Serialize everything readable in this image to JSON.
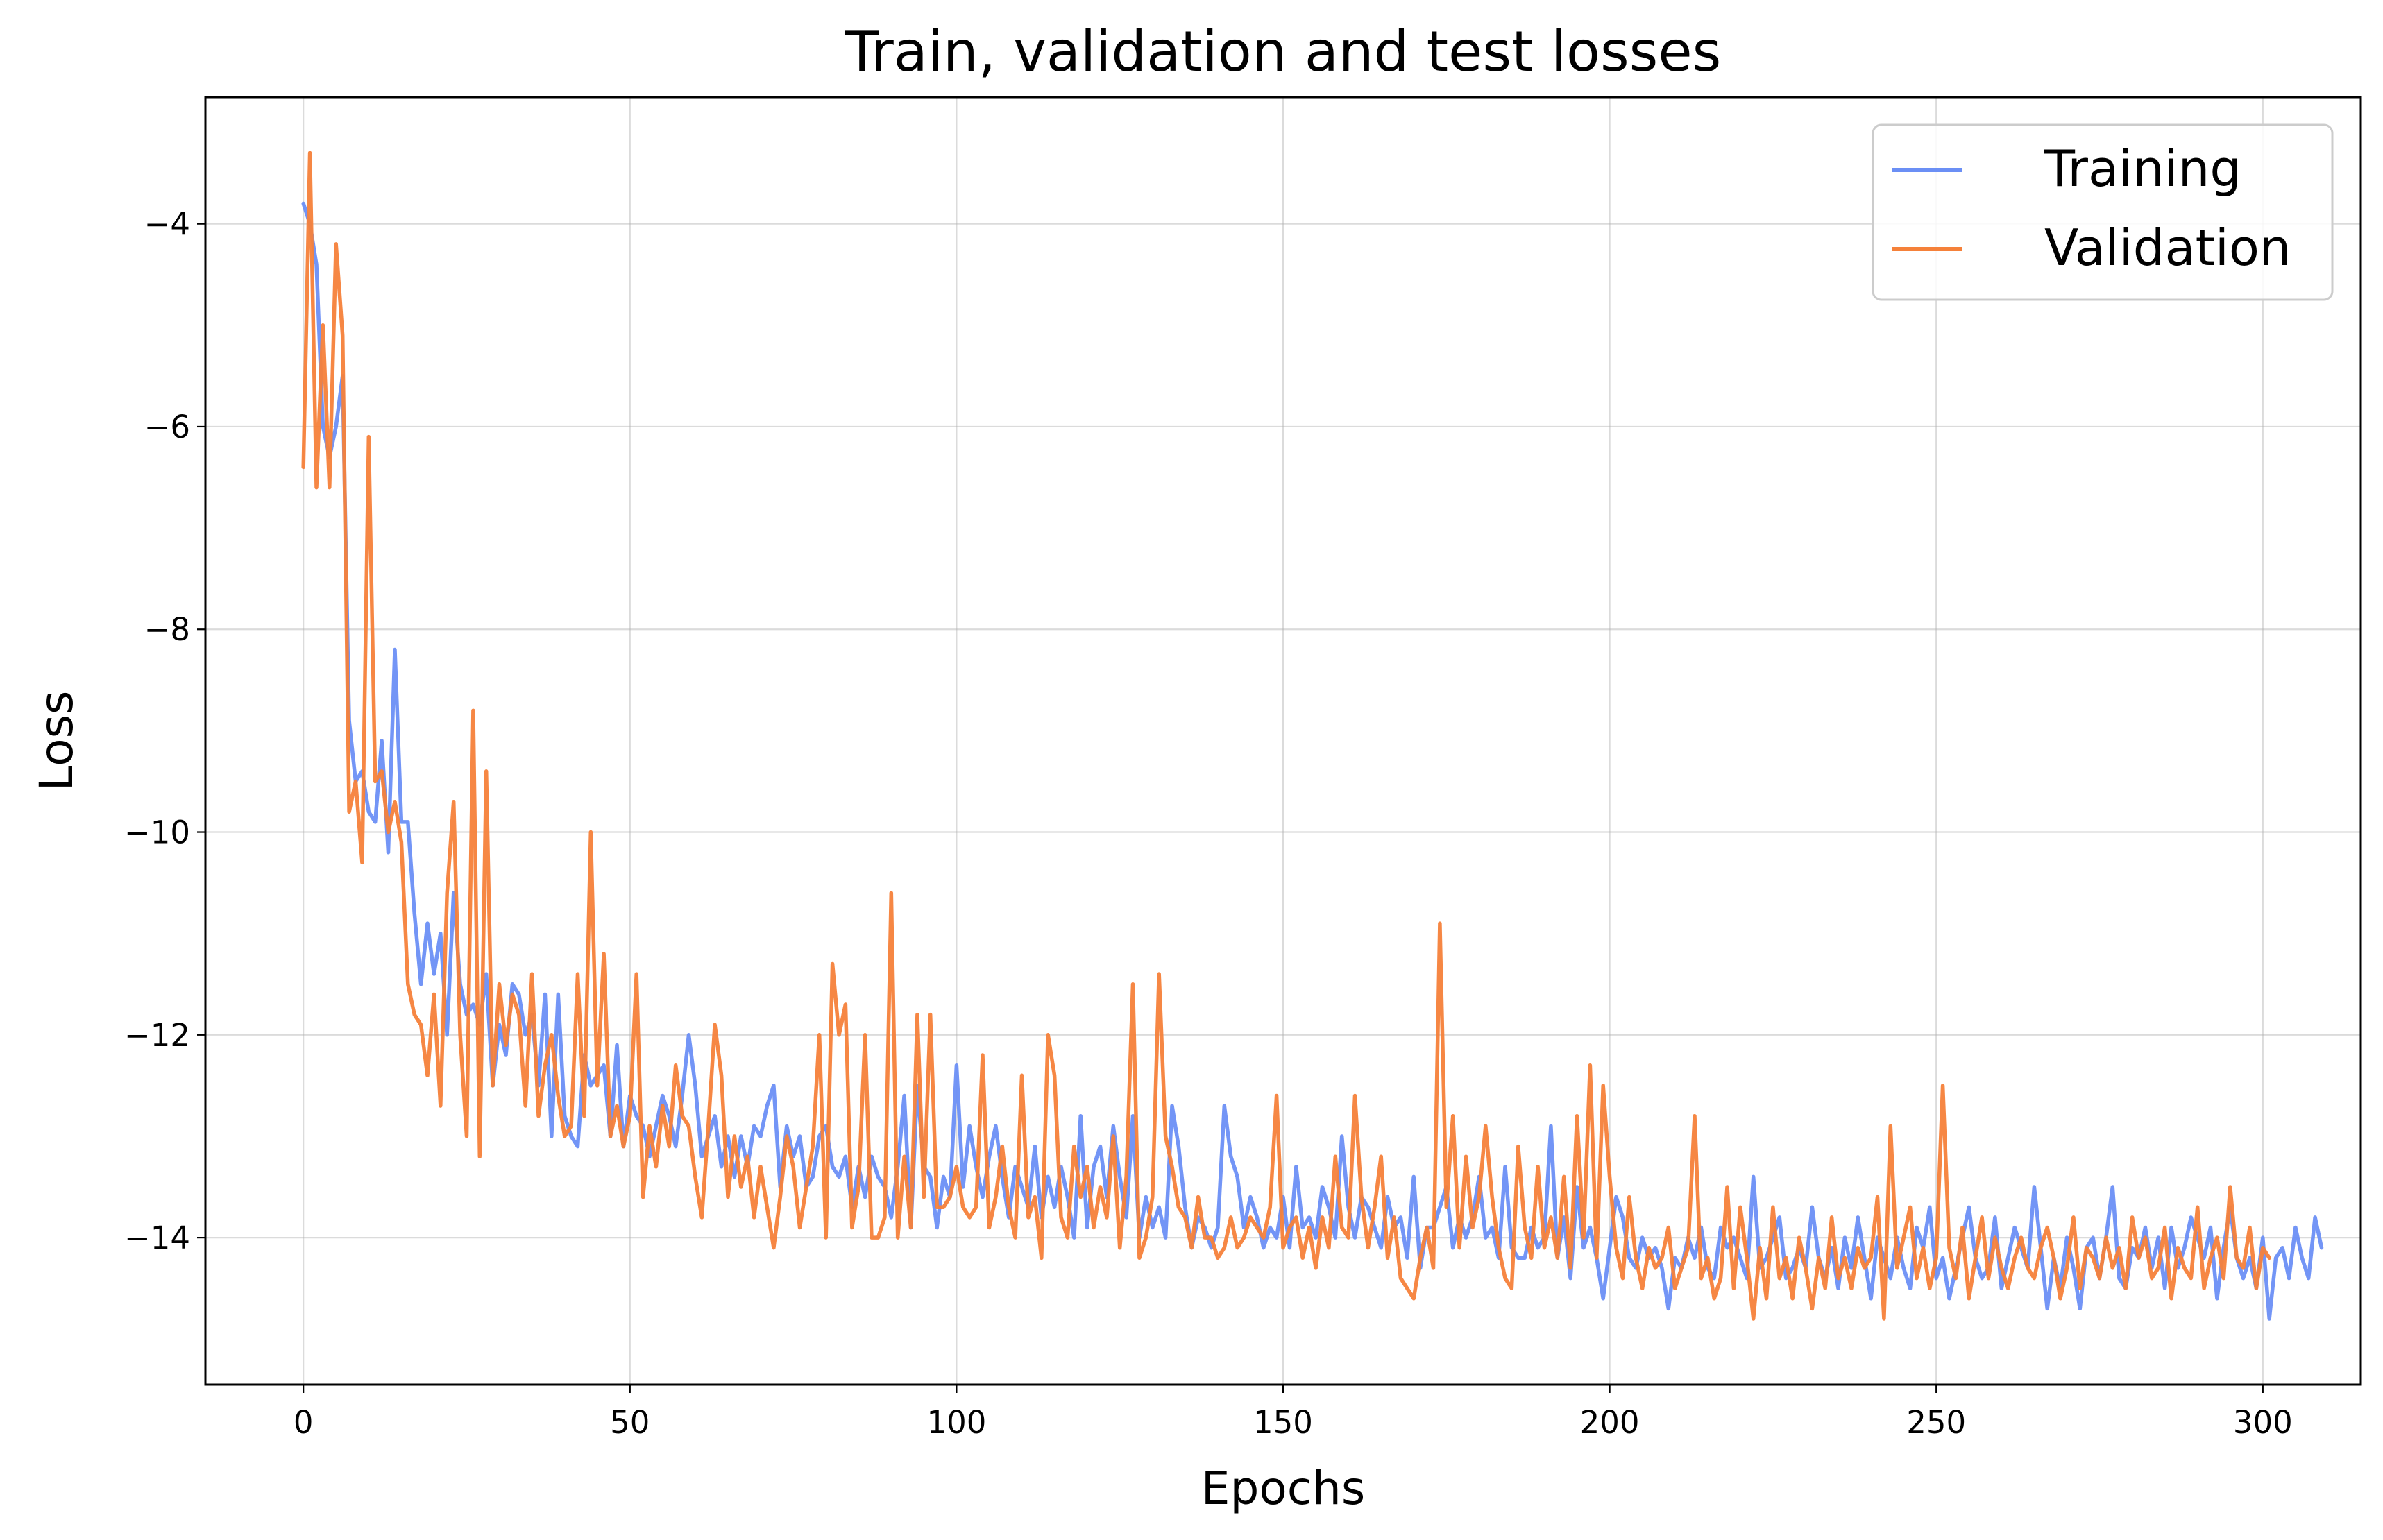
{
  "chart_data": {
    "type": "line",
    "title": "Train, validation and test losses",
    "xlabel": "Epochs",
    "ylabel": "Loss",
    "xlim": [
      -15,
      315
    ],
    "ylim": [
      -15.45,
      -2.75
    ],
    "xticks": [
      0,
      50,
      100,
      150,
      200,
      250,
      300
    ],
    "yticks": [
      -14,
      -12,
      -10,
      -8,
      -6,
      -4
    ],
    "grid": true,
    "legend_position": "top-right",
    "x": "epochs 0-299, one point per epoch",
    "series": [
      {
        "name": "Training",
        "color": "#6b8ff5",
        "values": [
          -3.8,
          -4.0,
          -4.4,
          -6.0,
          -6.3,
          -6.0,
          -5.5,
          -8.9,
          -9.5,
          -9.4,
          -9.8,
          -9.9,
          -9.1,
          -10.2,
          -8.2,
          -9.9,
          -9.9,
          -10.8,
          -11.5,
          -10.9,
          -11.4,
          -11.0,
          -12.0,
          -10.6,
          -11.5,
          -11.8,
          -11.7,
          -11.9,
          -11.4,
          -12.5,
          -11.9,
          -12.2,
          -11.5,
          -11.6,
          -12.0,
          -11.8,
          -12.5,
          -11.6,
          -13.0,
          -11.6,
          -12.8,
          -13.0,
          -13.1,
          -12.2,
          -12.5,
          -12.4,
          -12.3,
          -13.0,
          -12.1,
          -13.1,
          -12.6,
          -12.8,
          -12.9,
          -13.2,
          -12.9,
          -12.6,
          -12.8,
          -13.1,
          -12.6,
          -12.0,
          -12.5,
          -13.2,
          -13.0,
          -12.8,
          -13.3,
          -13.0,
          -13.4,
          -13.0,
          -13.3,
          -12.9,
          -13.0,
          -12.7,
          -12.5,
          -13.5,
          -12.9,
          -13.2,
          -13.0,
          -13.5,
          -13.4,
          -13.0,
          -12.9,
          -13.3,
          -13.4,
          -13.2,
          -13.7,
          -13.3,
          -13.6,
          -13.2,
          -13.4,
          -13.5,
          -13.8,
          -13.3,
          -12.6,
          -13.9,
          -12.5,
          -13.3,
          -13.4,
          -13.9,
          -13.4,
          -13.6,
          -12.3,
          -13.5,
          -12.9,
          -13.3,
          -13.6,
          -13.2,
          -12.9,
          -13.4,
          -13.8,
          -13.3,
          -13.5,
          -13.7,
          -13.1,
          -13.8,
          -13.4,
          -13.7,
          -13.3,
          -13.6,
          -14.0,
          -12.8,
          -13.9,
          -13.3,
          -13.1,
          -13.6,
          -12.9,
          -13.4,
          -13.8,
          -12.8,
          -14.0,
          -13.6,
          -13.9,
          -13.7,
          -14.0,
          -12.7,
          -13.1,
          -13.7,
          -14.1,
          -13.8,
          -13.9,
          -14.1,
          -13.9,
          -12.7,
          -13.2,
          -13.4,
          -13.9,
          -13.6,
          -13.8,
          -14.1,
          -13.9,
          -14.0,
          -13.6,
          -14.1,
          -13.3,
          -13.9,
          -13.8,
          -14.0,
          -13.5,
          -13.7,
          -14.0,
          -13.0,
          -13.7,
          -14.0,
          -13.6,
          -13.7,
          -13.9,
          -14.1,
          -13.6,
          -13.9,
          -13.8,
          -14.2,
          -13.4,
          -14.3,
          -13.9,
          -13.9,
          -13.7,
          -13.5,
          -14.1,
          -13.8,
          -14.0,
          -13.8,
          -13.4,
          -14.0,
          -13.9,
          -14.2,
          -13.3,
          -14.1,
          -14.2,
          -14.2,
          -13.9,
          -14.1,
          -14.0,
          -12.9,
          -14.2,
          -13.8,
          -14.4,
          -13.5,
          -14.1,
          -13.9,
          -14.2,
          -14.6,
          -14.1,
          -13.6,
          -13.8,
          -14.2,
          -14.3,
          -14.0,
          -14.2,
          -14.1,
          -14.3,
          -14.7,
          -14.2,
          -14.3,
          -14.0,
          -14.2,
          -13.9,
          -14.3,
          -14.4,
          -13.9,
          -14.1,
          -14.0,
          -14.2,
          -14.4,
          -13.4,
          -14.3,
          -14.2,
          -14.0,
          -13.8,
          -14.4,
          -14.3,
          -14.1,
          -14.3,
          -13.7,
          -14.2,
          -14.4,
          -14.1,
          -14.5,
          -14.0,
          -14.3,
          -13.8,
          -14.2,
          -14.6,
          -14.0,
          -14.2,
          -14.4,
          -14.0,
          -14.3,
          -14.5,
          -13.9,
          -14.1,
          -13.7,
          -14.4,
          -14.2,
          -14.6,
          -14.3,
          -14.0,
          -13.7,
          -14.2,
          -14.4,
          -14.3,
          -13.8,
          -14.5,
          -14.2,
          -13.9,
          -14.1,
          -14.3,
          -13.5,
          -14.1,
          -14.7,
          -14.2,
          -14.5,
          -14.0,
          -14.3,
          -14.7,
          -14.1,
          -14.0,
          -14.4,
          -14.0,
          -13.5,
          -14.4,
          -14.5,
          -14.1,
          -14.2,
          -13.9,
          -14.3,
          -14.0,
          -14.5,
          -13.9,
          -14.3,
          -14.1,
          -13.8,
          -14.0,
          -14.2,
          -13.9,
          -14.6,
          -14.1,
          -13.7,
          -14.2,
          -14.4,
          -14.2,
          -14.5,
          -14.0,
          -14.8,
          -14.2,
          -14.1,
          -14.4,
          -13.9,
          -14.2,
          -14.4,
          -13.8,
          -14.1
        ]
      },
      {
        "name": "Validation",
        "color": "#f5813a",
        "values": [
          -6.4,
          -3.3,
          -6.6,
          -5.0,
          -6.6,
          -4.2,
          -5.1,
          -9.8,
          -9.5,
          -10.3,
          -6.1,
          -9.5,
          -9.4,
          -10.0,
          -9.7,
          -10.1,
          -11.5,
          -11.8,
          -11.9,
          -12.4,
          -11.6,
          -12.7,
          -10.6,
          -9.7,
          -12.0,
          -13.0,
          -8.8,
          -13.2,
          -9.4,
          -12.5,
          -11.5,
          -12.1,
          -11.6,
          -11.8,
          -12.7,
          -11.4,
          -12.8,
          -12.3,
          -12.0,
          -12.6,
          -13.0,
          -12.9,
          -11.4,
          -12.8,
          -10.0,
          -12.5,
          -11.2,
          -13.0,
          -12.7,
          -13.1,
          -12.8,
          -11.4,
          -13.6,
          -12.9,
          -13.3,
          -12.7,
          -13.1,
          -12.3,
          -12.8,
          -12.9,
          -13.4,
          -13.8,
          -12.9,
          -11.9,
          -12.4,
          -13.6,
          -13.0,
          -13.5,
          -13.2,
          -13.8,
          -13.3,
          -13.7,
          -14.1,
          -13.6,
          -13.0,
          -13.3,
          -13.9,
          -13.5,
          -13.1,
          -12.0,
          -14.0,
          -11.3,
          -12.0,
          -11.7,
          -13.9,
          -13.5,
          -12.0,
          -14.0,
          -14.0,
          -13.8,
          -10.6,
          -14.0,
          -13.2,
          -13.9,
          -11.8,
          -13.6,
          -11.8,
          -13.7,
          -13.7,
          -13.6,
          -13.3,
          -13.7,
          -13.8,
          -13.7,
          -12.2,
          -13.9,
          -13.6,
          -13.1,
          -13.7,
          -14.0,
          -12.4,
          -13.8,
          -13.6,
          -14.2,
          -12.0,
          -12.4,
          -13.8,
          -14.0,
          -13.1,
          -13.6,
          -13.3,
          -13.9,
          -13.5,
          -13.8,
          -13.0,
          -14.1,
          -13.4,
          -11.5,
          -14.2,
          -14.0,
          -13.6,
          -11.4,
          -13.0,
          -13.3,
          -13.7,
          -13.8,
          -14.1,
          -13.6,
          -14.0,
          -14.0,
          -14.2,
          -14.1,
          -13.8,
          -14.1,
          -14.0,
          -13.8,
          -13.9,
          -14.0,
          -13.7,
          -12.6,
          -14.1,
          -13.9,
          -13.8,
          -14.2,
          -13.9,
          -14.3,
          -13.8,
          -14.1,
          -13.2,
          -13.9,
          -14.0,
          -12.6,
          -13.6,
          -14.1,
          -13.7,
          -13.2,
          -14.2,
          -13.8,
          -14.4,
          -14.5,
          -14.6,
          -14.2,
          -13.9,
          -14.3,
          -10.9,
          -13.7,
          -12.8,
          -14.1,
          -13.2,
          -13.9,
          -13.6,
          -12.9,
          -13.6,
          -14.1,
          -14.4,
          -14.5,
          -13.1,
          -13.9,
          -14.2,
          -13.3,
          -14.1,
          -13.8,
          -14.2,
          -13.4,
          -14.3,
          -12.8,
          -14.0,
          -12.3,
          -14.2,
          -12.5,
          -13.4,
          -14.1,
          -14.4,
          -13.6,
          -14.2,
          -14.5,
          -14.1,
          -14.3,
          -14.2,
          -13.9,
          -14.5,
          -14.3,
          -14.1,
          -12.8,
          -14.4,
          -14.2,
          -14.6,
          -14.4,
          -13.5,
          -14.5,
          -13.7,
          -14.2,
          -14.8,
          -14.1,
          -14.6,
          -13.7,
          -14.4,
          -14.2,
          -14.6,
          -14.0,
          -14.3,
          -14.7,
          -14.2,
          -14.5,
          -13.8,
          -14.4,
          -14.2,
          -14.5,
          -14.1,
          -14.3,
          -14.2,
          -13.6,
          -14.8,
          -12.9,
          -14.3,
          -14.0,
          -13.7,
          -14.4,
          -14.1,
          -14.5,
          -14.2,
          -12.5,
          -14.1,
          -14.4,
          -13.9,
          -14.6,
          -14.2,
          -13.8,
          -14.4,
          -14.0,
          -14.3,
          -14.5,
          -14.2,
          -14.0,
          -14.3,
          -14.4,
          -14.1,
          -13.9,
          -14.2,
          -14.6,
          -14.3,
          -13.8,
          -14.5,
          -14.1,
          -14.2,
          -14.4,
          -14.0,
          -14.3,
          -14.1,
          -14.5,
          -13.8,
          -14.2,
          -14.0,
          -14.4,
          -14.3,
          -13.9,
          -14.6,
          -14.1,
          -14.3,
          -14.4,
          -13.7,
          -14.5,
          -14.2,
          -14.0,
          -14.4,
          -13.5,
          -14.2,
          -14.3,
          -13.9,
          -14.5,
          -14.1,
          -14.2
        ]
      }
    ]
  }
}
